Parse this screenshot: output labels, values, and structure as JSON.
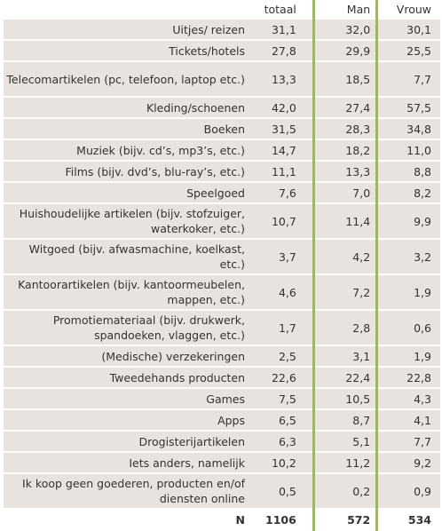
{
  "table": {
    "columns": [
      "totaal",
      "Man",
      "Vrouw"
    ],
    "rows": [
      {
        "label": "Uitjes/ reizen",
        "values": [
          "31,1",
          "32,0",
          "30,1"
        ]
      },
      {
        "label": "Tickets/hotels",
        "values": [
          "27,8",
          "29,9",
          "25,5"
        ]
      },
      {
        "label": "Telecomartikelen (pc, telefoon, laptop etc.)",
        "values": [
          "13,3",
          "18,5",
          "7,7"
        ]
      },
      {
        "label": "Kleding/schoenen",
        "values": [
          "42,0",
          "27,4",
          "57,5"
        ]
      },
      {
        "label": "Boeken",
        "values": [
          "31,5",
          "28,3",
          "34,8"
        ]
      },
      {
        "label": "Muziek (bijv. cd’s, mp3’s, etc.)",
        "values": [
          "14,7",
          "18,2",
          "11,0"
        ]
      },
      {
        "label": "Films (bijv. dvd’s, blu-ray’s, etc.)",
        "values": [
          "11,1",
          "13,3",
          "8,8"
        ]
      },
      {
        "label": "Speelgoed",
        "values": [
          "7,6",
          "7,0",
          "8,2"
        ]
      },
      {
        "label": "Huishoudelijke artikelen (bijv. stofzuiger, waterkoker, etc.)",
        "values": [
          "10,7",
          "11,4",
          "9,9"
        ]
      },
      {
        "label": "Witgoed (bijv. afwasmachine, koelkast, etc.)",
        "values": [
          "3,7",
          "4,2",
          "3,2"
        ]
      },
      {
        "label": "Kantoorartikelen (bijv. kantoormeubelen, mappen, etc.)",
        "values": [
          "4,6",
          "7,2",
          "1,9"
        ]
      },
      {
        "label": "Promotiemateriaal (bijv. drukwerk, spandoeken, vlaggen, etc.)",
        "values": [
          "1,7",
          "2,8",
          "0,6"
        ]
      },
      {
        "label": "(Medische) verzekeringen",
        "values": [
          "2,5",
          "3,1",
          "1,9"
        ]
      },
      {
        "label": "Tweedehands producten",
        "values": [
          "22,6",
          "22,4",
          "22,8"
        ]
      },
      {
        "label": "Games",
        "values": [
          "7,5",
          "10,5",
          "4,3"
        ]
      },
      {
        "label": "Apps",
        "values": [
          "6,5",
          "8,7",
          "4,1"
        ]
      },
      {
        "label": "Drogisterijartikelen",
        "values": [
          "6,3",
          "5,1",
          "7,7"
        ]
      },
      {
        "label": "Iets anders, namelijk",
        "values": [
          "10,2",
          "11,2",
          "9,2"
        ]
      },
      {
        "label": "Ik koop geen goederen, producten en/of diensten online",
        "values": [
          "0,5",
          "0,2",
          "0,9"
        ]
      }
    ],
    "total": {
      "label": "N",
      "values": [
        "1106",
        "572",
        "534"
      ]
    }
  }
}
